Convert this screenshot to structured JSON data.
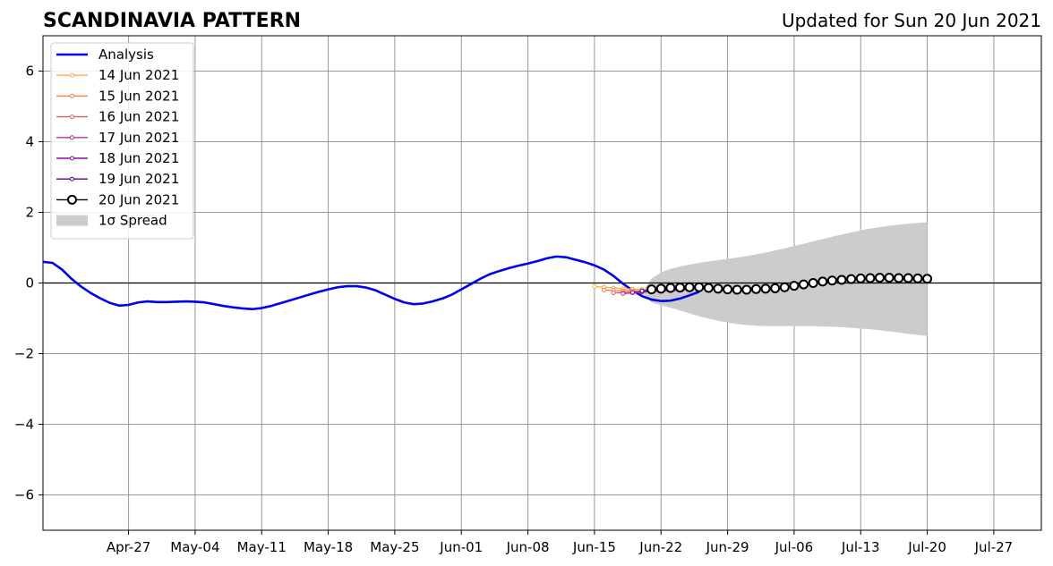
{
  "chart_data": {
    "type": "line",
    "title": "SCANDINAVIA PATTERN",
    "subtitle": "Updated for Sun 20 Jun 2021",
    "xlabel": "",
    "ylabel": "",
    "ylim": [
      -7,
      7
    ],
    "xlim": [
      "2021-04-18",
      "2021-08-01"
    ],
    "grid": true,
    "legend_position": "top-left",
    "x_ticks": [
      "2021-04-27",
      "2021-05-04",
      "2021-05-11",
      "2021-05-18",
      "2021-05-25",
      "2021-06-01",
      "2021-06-08",
      "2021-06-15",
      "2021-06-22",
      "2021-06-29",
      "2021-07-06",
      "2021-07-13",
      "2021-07-20",
      "2021-07-27"
    ],
    "x_tick_labels": [
      "Apr-27",
      "May-04",
      "May-11",
      "May-18",
      "May-25",
      "Jun-01",
      "Jun-08",
      "Jun-15",
      "Jun-22",
      "Jun-29",
      "Jul-06",
      "Jul-13",
      "Jul-20",
      "Jul-27"
    ],
    "y_ticks": [
      -6,
      -4,
      -2,
      0,
      2,
      4,
      6
    ],
    "y_tick_labels": [
      "−6",
      "−4",
      "−2",
      "0",
      "2",
      "4",
      "6"
    ],
    "analysis": {
      "name": "Analysis",
      "color": "#0000ee",
      "start": "2021-04-18",
      "values": [
        0.6,
        0.57,
        0.38,
        0.12,
        -0.1,
        -0.28,
        -0.43,
        -0.56,
        -0.64,
        -0.62,
        -0.55,
        -0.52,
        -0.54,
        -0.54,
        -0.53,
        -0.52,
        -0.53,
        -0.55,
        -0.6,
        -0.65,
        -0.69,
        -0.72,
        -0.74,
        -0.71,
        -0.65,
        -0.57,
        -0.49,
        -0.41,
        -0.33,
        -0.25,
        -0.18,
        -0.12,
        -0.09,
        -0.09,
        -0.13,
        -0.21,
        -0.33,
        -0.45,
        -0.55,
        -0.6,
        -0.58,
        -0.52,
        -0.44,
        -0.33,
        -0.18,
        -0.03,
        0.12,
        0.25,
        0.34,
        0.42,
        0.49,
        0.55,
        0.62,
        0.7,
        0.75,
        0.73,
        0.66,
        0.59,
        0.5,
        0.38,
        0.2,
        -0.02,
        -0.21,
        -0.37,
        -0.47,
        -0.51,
        -0.5,
        -0.44,
        -0.35,
        -0.25
      ]
    },
    "forecasts": [
      {
        "name": "14 Jun 2021",
        "color": "#fcae42",
        "start": "2021-06-15",
        "values": [
          -0.1,
          -0.12,
          -0.14,
          -0.16,
          -0.17,
          -0.18,
          -0.19
        ]
      },
      {
        "name": "15 Jun 2021",
        "color": "#f07f4f",
        "start": "2021-06-16",
        "values": [
          -0.2,
          -0.21,
          -0.22,
          -0.22,
          -0.22,
          -0.21,
          -0.21
        ]
      },
      {
        "name": "16 Jun 2021",
        "color": "#dc5f6a",
        "start": "2021-06-17",
        "values": [
          -0.28,
          -0.27,
          -0.26,
          -0.25,
          -0.24,
          -0.23,
          -0.22
        ]
      },
      {
        "name": "17 Jun 2021",
        "color": "#b83289",
        "start": "2021-06-18",
        "values": [
          -0.3,
          -0.28,
          -0.26,
          -0.24,
          -0.22,
          -0.21,
          -0.21
        ]
      },
      {
        "name": "18 Jun 2021",
        "color": "#8b0aa5",
        "start": "2021-06-19",
        "values": [
          -0.27,
          -0.24,
          -0.22,
          -0.21,
          -0.2,
          -0.19,
          -0.19
        ]
      },
      {
        "name": "19 Jun 2021",
        "color": "#4b0a8c",
        "start": "2021-06-20",
        "values": [
          -0.22,
          -0.2,
          -0.18,
          -0.17,
          -0.16,
          -0.16,
          -0.16
        ]
      }
    ],
    "current_forecast": {
      "name": "20 Jun 2021",
      "color": "#000000",
      "start": "2021-06-21",
      "values": [
        -0.18,
        -0.16,
        -0.14,
        -0.13,
        -0.12,
        -0.12,
        -0.14,
        -0.16,
        -0.18,
        -0.19,
        -0.19,
        -0.17,
        -0.16,
        -0.15,
        -0.12,
        -0.08,
        -0.04,
        0.0,
        0.04,
        0.07,
        0.09,
        0.11,
        0.13,
        0.14,
        0.15,
        0.15,
        0.14,
        0.14,
        0.13,
        0.12
      ]
    },
    "spread": {
      "name": "1σ Spread",
      "color": "#cccccc",
      "start": "2021-06-20",
      "upper": [
        -0.25,
        0.12,
        0.3,
        0.4,
        0.47,
        0.52,
        0.57,
        0.61,
        0.65,
        0.68,
        0.72,
        0.76,
        0.81,
        0.86,
        0.92,
        0.98,
        1.05,
        1.11,
        1.18,
        1.24,
        1.31,
        1.37,
        1.43,
        1.49,
        1.54,
        1.58,
        1.62,
        1.65,
        1.68,
        1.7,
        1.72
      ],
      "lower": [
        -0.25,
        -0.55,
        -0.63,
        -0.7,
        -0.78,
        -0.86,
        -0.94,
        -1.01,
        -1.07,
        -1.12,
        -1.16,
        -1.19,
        -1.21,
        -1.22,
        -1.22,
        -1.22,
        -1.22,
        -1.22,
        -1.22,
        -1.23,
        -1.24,
        -1.25,
        -1.27,
        -1.29,
        -1.31,
        -1.34,
        -1.37,
        -1.4,
        -1.44,
        -1.47,
        -1.5
      ]
    }
  }
}
